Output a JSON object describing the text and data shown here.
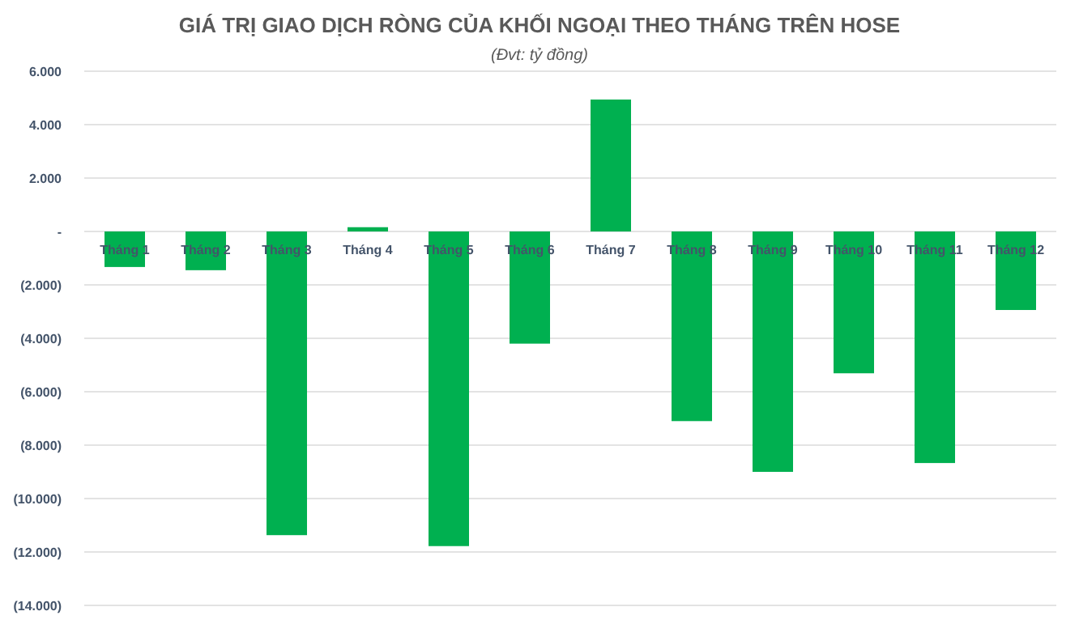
{
  "chart_data": {
    "type": "bar",
    "title": "GIÁ TRỊ GIAO DỊCH RÒNG CỦA KHỐI NGOẠI THEO THÁNG TRÊN HOSE",
    "subtitle": "(Đvt: tỷ đồng)",
    "categories": [
      "Tháng 1",
      "Tháng 2",
      "Tháng 3",
      "Tháng 4",
      "Tháng 5",
      "Tháng 6",
      "Tháng 7",
      "Tháng 8",
      "Tháng 9",
      "Tháng 10",
      "Tháng 11",
      "Tháng 12"
    ],
    "values": [
      -1330,
      -1450,
      -11370,
      160,
      -11780,
      -4200,
      4940,
      -7100,
      -9000,
      -5310,
      -8670,
      -2940
    ],
    "color": "#00b050",
    "ylim": [
      -14000,
      6000
    ],
    "yticks": [
      {
        "value": -14000,
        "label": "(14.000)"
      },
      {
        "value": -12000,
        "label": "(12.000)"
      },
      {
        "value": -10000,
        "label": "(10.000)"
      },
      {
        "value": -8000,
        "label": "(8.000)"
      },
      {
        "value": -6000,
        "label": "(6.000)"
      },
      {
        "value": -4000,
        "label": "(4.000)"
      },
      {
        "value": -2000,
        "label": "(2.000)"
      },
      {
        "value": 0,
        "label": "-"
      },
      {
        "value": 2000,
        "label": "2.000"
      },
      {
        "value": 4000,
        "label": "4.000"
      },
      {
        "value": 6000,
        "label": "6.000"
      }
    ],
    "grid": "y"
  }
}
